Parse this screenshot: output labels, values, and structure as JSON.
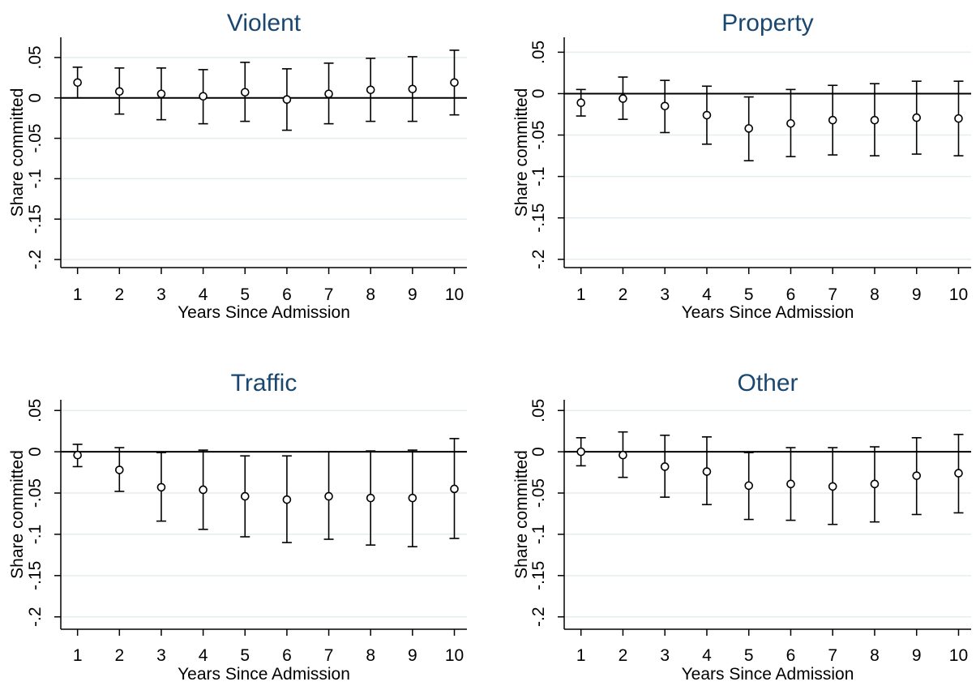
{
  "chart_data": [
    {
      "type": "scatter",
      "title": "Violent",
      "xlabel": "Years Since Admission",
      "ylabel": "Share committed",
      "x": [
        1,
        2,
        3,
        4,
        5,
        6,
        7,
        8,
        9,
        10
      ],
      "y": [
        0.019,
        0.008,
        0.005,
        0.002,
        0.007,
        -0.002,
        0.005,
        0.01,
        0.011,
        0.019
      ],
      "ci_low": [
        0.0,
        -0.02,
        -0.027,
        -0.032,
        -0.029,
        -0.04,
        -0.032,
        -0.029,
        -0.029,
        -0.021
      ],
      "ci_high": [
        0.038,
        0.037,
        0.037,
        0.035,
        0.044,
        0.036,
        0.043,
        0.049,
        0.051,
        0.059
      ],
      "xticks": [
        "1",
        "2",
        "3",
        "4",
        "5",
        "6",
        "7",
        "8",
        "9",
        "10"
      ],
      "yticks": [
        "-.2",
        "-.15",
        "-.1",
        "-.05",
        "0",
        ".05"
      ],
      "ylim": [
        -0.21,
        0.075
      ],
      "xlim": [
        0.6,
        10.3
      ],
      "reference_line": 0,
      "grid": true
    },
    {
      "type": "scatter",
      "title": "Property",
      "xlabel": "Years Since Admission",
      "ylabel": "Share committed",
      "x": [
        1,
        2,
        3,
        4,
        5,
        6,
        7,
        8,
        9,
        10
      ],
      "y": [
        -0.011,
        -0.006,
        -0.015,
        -0.026,
        -0.042,
        -0.036,
        -0.032,
        -0.032,
        -0.029,
        -0.03
      ],
      "ci_low": [
        -0.027,
        -0.031,
        -0.047,
        -0.061,
        -0.081,
        -0.076,
        -0.074,
        -0.075,
        -0.073,
        -0.075
      ],
      "ci_high": [
        0.005,
        0.02,
        0.016,
        0.009,
        -0.004,
        0.005,
        0.01,
        0.012,
        0.015,
        0.015
      ],
      "xticks": [
        "1",
        "2",
        "3",
        "4",
        "5",
        "6",
        "7",
        "8",
        "9",
        "10"
      ],
      "yticks": [
        "-.2",
        "-.15",
        "-.1",
        "-.05",
        "0",
        ".05"
      ],
      "ylim": [
        -0.21,
        0.068
      ],
      "xlim": [
        0.6,
        10.3
      ],
      "reference_line": 0,
      "grid": true
    },
    {
      "type": "scatter",
      "title": "Traffic",
      "xlabel": "Years Since Admission",
      "ylabel": "Share committed",
      "x": [
        1,
        2,
        3,
        4,
        5,
        6,
        7,
        8,
        9,
        10
      ],
      "y": [
        -0.004,
        -0.022,
        -0.043,
        -0.046,
        -0.054,
        -0.058,
        -0.054,
        -0.056,
        -0.056,
        -0.045
      ],
      "ci_low": [
        -0.018,
        -0.048,
        -0.084,
        -0.094,
        -0.103,
        -0.11,
        -0.106,
        -0.113,
        -0.115,
        -0.105
      ],
      "ci_high": [
        0.009,
        0.005,
        -0.001,
        0.002,
        -0.005,
        -0.005,
        0.0,
        0.001,
        0.002,
        0.016
      ],
      "xticks": [
        "1",
        "2",
        "3",
        "4",
        "5",
        "6",
        "7",
        "8",
        "9",
        "10"
      ],
      "yticks": [
        "-.2",
        "-.15",
        "-.1",
        "-.05",
        "0",
        ".05"
      ],
      "ylim": [
        -0.215,
        0.063
      ],
      "xlim": [
        0.6,
        10.3
      ],
      "reference_line": 0,
      "grid": true
    },
    {
      "type": "scatter",
      "title": "Other",
      "xlabel": "Years Since Admission",
      "ylabel": "Share committed",
      "x": [
        1,
        2,
        3,
        4,
        5,
        6,
        7,
        8,
        9,
        10
      ],
      "y": [
        0.0,
        -0.004,
        -0.018,
        -0.024,
        -0.041,
        -0.039,
        -0.042,
        -0.039,
        -0.029,
        -0.026
      ],
      "ci_low": [
        -0.017,
        -0.031,
        -0.055,
        -0.064,
        -0.082,
        -0.083,
        -0.088,
        -0.085,
        -0.076,
        -0.074
      ],
      "ci_high": [
        0.017,
        0.024,
        0.02,
        0.018,
        -0.001,
        0.005,
        0.005,
        0.006,
        0.017,
        0.021
      ],
      "xticks": [
        "1",
        "2",
        "3",
        "4",
        "5",
        "6",
        "7",
        "8",
        "9",
        "10"
      ],
      "yticks": [
        "-.2",
        "-.15",
        "-.1",
        "-.05",
        "0",
        ".05"
      ],
      "ylim": [
        -0.215,
        0.063
      ],
      "xlim": [
        0.6,
        10.3
      ],
      "reference_line": 0,
      "grid": true
    }
  ],
  "colors": {
    "title": "#1a476f",
    "gridline": "#e4eef0",
    "ink": "#000000",
    "background": "#ffffff"
  }
}
